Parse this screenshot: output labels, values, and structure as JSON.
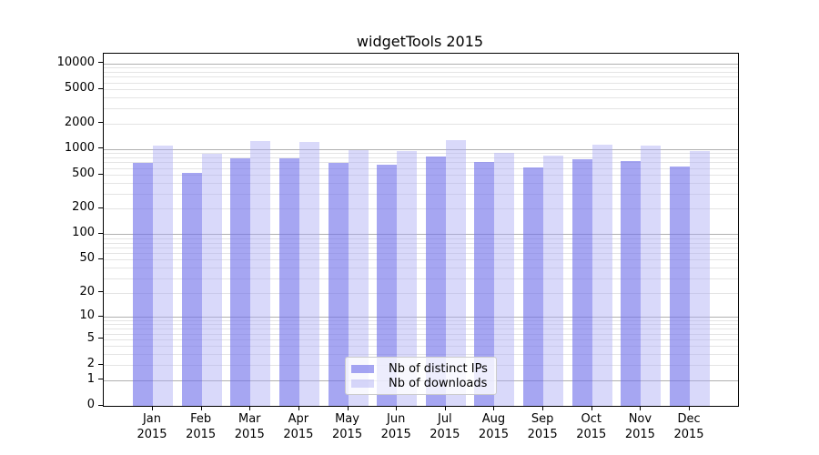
{
  "title": "widgetTools 2015",
  "chart_data": {
    "type": "bar",
    "title": "widgetTools 2015",
    "categories": [
      "Jan 2015",
      "Feb 2015",
      "Mar 2015",
      "Apr 2015",
      "May 2015",
      "Jun 2015",
      "Jul 2015",
      "Aug 2015",
      "Sep 2015",
      "Oct 2015",
      "Nov 2015",
      "Dec 2015"
    ],
    "series": [
      {
        "name": "Nb of distinct IPs",
        "color": "rgba(111,111,234,0.62)",
        "values": [
          690,
          530,
          780,
          780,
          690,
          660,
          820,
          710,
          610,
          760,
          730,
          630
        ]
      },
      {
        "name": "Nb of downloads",
        "color": "rgba(170,170,243,0.45)",
        "values": [
          1100,
          890,
          1250,
          1220,
          980,
          950,
          1280,
          910,
          830,
          1130,
          1100,
          950
        ]
      }
    ],
    "xlabel": "",
    "ylabel": "",
    "yscale": "log1p",
    "ylim": [
      0,
      12000
    ],
    "yticks": [
      0,
      1,
      2,
      5,
      10,
      20,
      50,
      100,
      200,
      500,
      1000,
      2000,
      5000,
      10000
    ],
    "major_gridline_values": [
      1,
      10,
      100,
      1000,
      10000
    ],
    "grid": true,
    "legend_position": "lower center"
  },
  "colors": {
    "grid_major": "#b0b0b0",
    "grid_minor": "#e4e4e4",
    "spine": "#000000",
    "background": "#ffffff"
  }
}
